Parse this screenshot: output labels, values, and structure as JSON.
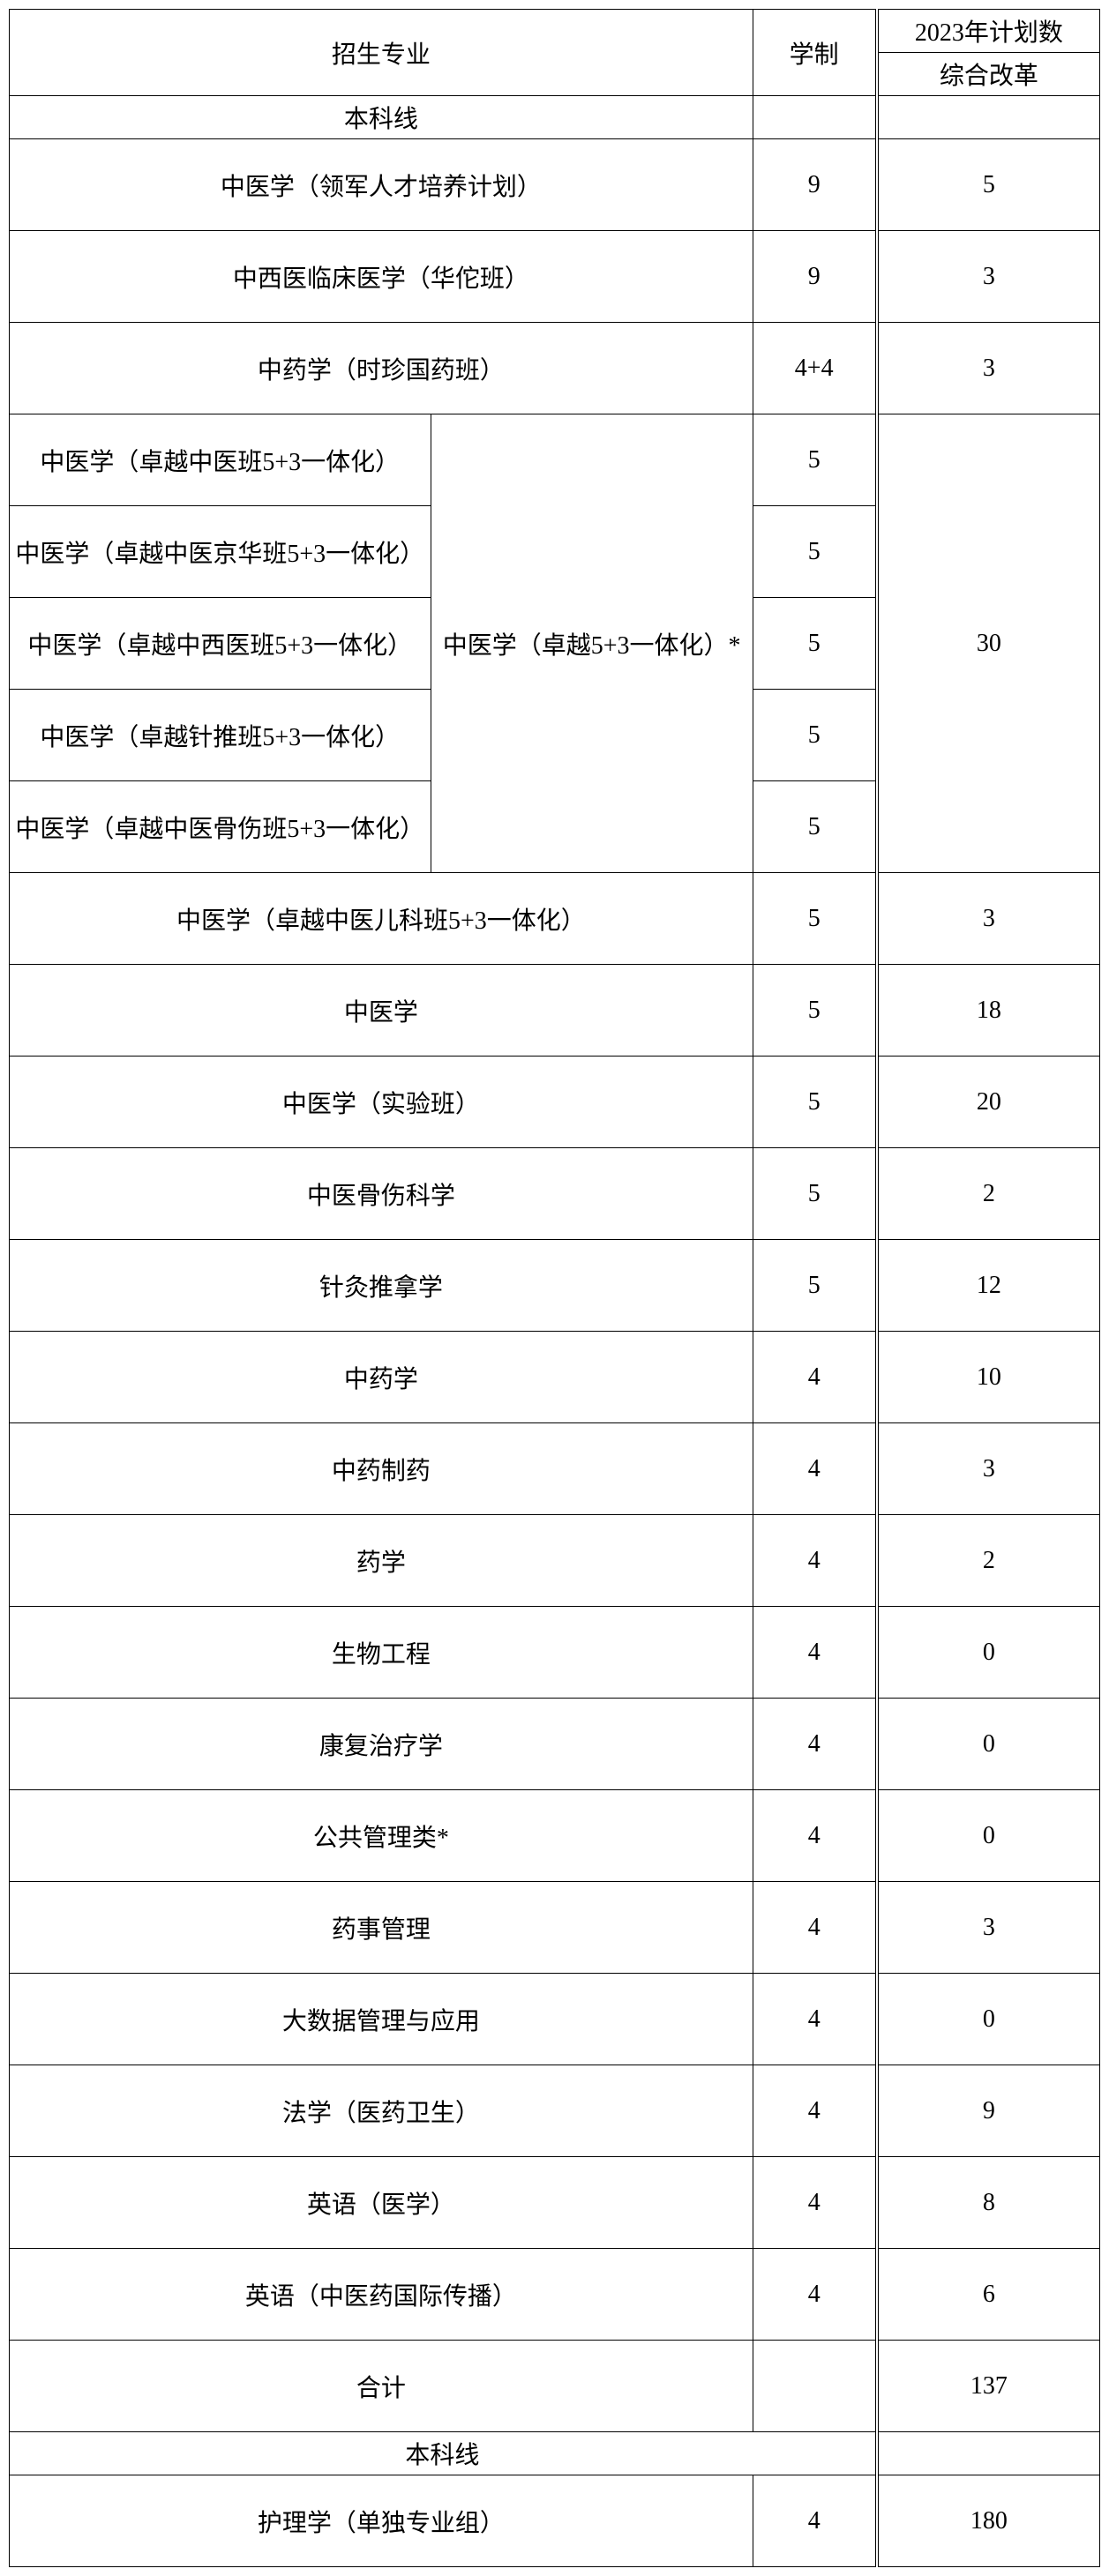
{
  "header": {
    "major": "招生专业",
    "duration": "学制",
    "plan_year": "2023年计划数",
    "plan_type": "综合改革"
  },
  "section1_label": "本科线",
  "rows_simple_top": [
    {
      "major": "中医学（领军人才培养计划）",
      "duration": "9",
      "plan": "5"
    },
    {
      "major": "中西医临床医学（华佗班）",
      "duration": "9",
      "plan": "3"
    },
    {
      "major": "中药学（时珍国药班）",
      "duration": "4+4",
      "plan": "3"
    }
  ],
  "group": {
    "label": "中医学（卓越5+3一体化）*",
    "plan": "30",
    "subs": [
      {
        "major": "中医学（卓越中医班5+3一体化）",
        "duration": "5"
      },
      {
        "major": "中医学（卓越中医京华班5+3一体化）",
        "duration": "5"
      },
      {
        "major": "中医学（卓越中西医班5+3一体化）",
        "duration": "5"
      },
      {
        "major": "中医学（卓越针推班5+3一体化）",
        "duration": "5"
      },
      {
        "major": "中医学（卓越中医骨伤班5+3一体化）",
        "duration": "5"
      }
    ]
  },
  "rows_simple_bottom": [
    {
      "major": "中医学（卓越中医儿科班5+3一体化）",
      "duration": "5",
      "plan": "3"
    },
    {
      "major": "中医学",
      "duration": "5",
      "plan": "18"
    },
    {
      "major": "中医学（实验班）",
      "duration": "5",
      "plan": "20"
    },
    {
      "major": "中医骨伤科学",
      "duration": "5",
      "plan": "2"
    },
    {
      "major": "针灸推拿学",
      "duration": "5",
      "plan": "12"
    },
    {
      "major": "中药学",
      "duration": "4",
      "plan": "10"
    },
    {
      "major": "中药制药",
      "duration": "4",
      "plan": "3"
    },
    {
      "major": "药学",
      "duration": "4",
      "plan": "2"
    },
    {
      "major": "生物工程",
      "duration": "4",
      "plan": "0"
    },
    {
      "major": "康复治疗学",
      "duration": "4",
      "plan": "0"
    },
    {
      "major": "公共管理类*",
      "duration": "4",
      "plan": "0"
    },
    {
      "major": "药事管理",
      "duration": "4",
      "plan": "3"
    },
    {
      "major": "大数据管理与应用",
      "duration": "4",
      "plan": "0"
    },
    {
      "major": "法学（医药卫生）",
      "duration": "4",
      "plan": "9"
    },
    {
      "major": "英语（医学）",
      "duration": "4",
      "plan": "8"
    },
    {
      "major": "英语（中医药国际传播）",
      "duration": "4",
      "plan": "6"
    }
  ],
  "total": {
    "label": "合计",
    "plan": "137"
  },
  "section2_label": "本科线",
  "section2_row": {
    "major": "护理学（单独专业组）",
    "duration": "4",
    "plan": "180"
  }
}
